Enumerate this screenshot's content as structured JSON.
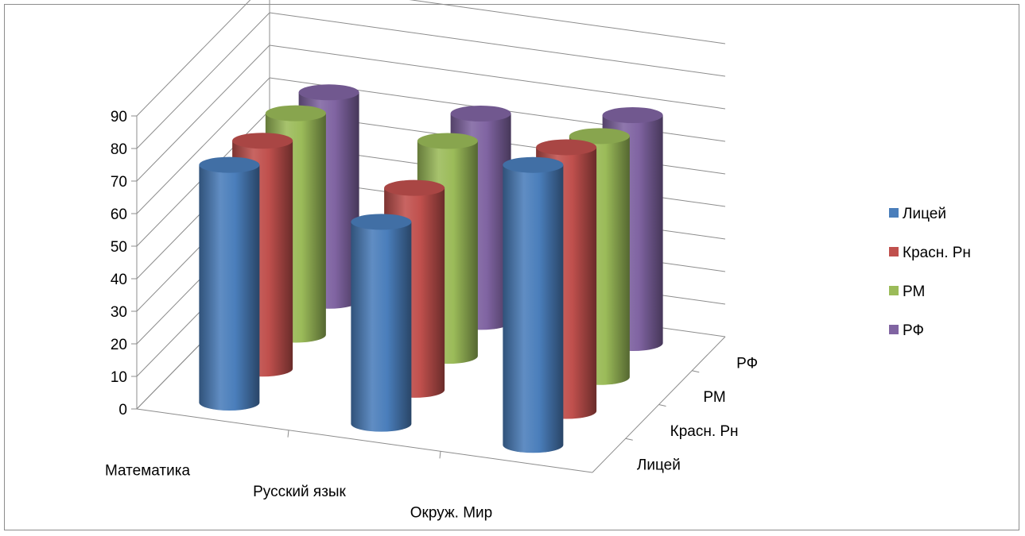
{
  "chart_data": {
    "type": "bar",
    "subtype": "3d-cylinder",
    "title": "",
    "categories": [
      "Математика",
      "Русский язык",
      "Окруж. Мир"
    ],
    "depth_labels": [
      "Лицей",
      "Красн. Рн",
      "РМ",
      "РФ"
    ],
    "series": [
      {
        "name": "Лицей",
        "color": "#4a7ebb",
        "values": [
          73,
          62,
          86
        ]
      },
      {
        "name": "Красн. Рн",
        "color": "#c0504d",
        "values": [
          70,
          62,
          81
        ]
      },
      {
        "name": "РМ",
        "color": "#9bbb59",
        "values": [
          68,
          66,
          74
        ]
      },
      {
        "name": "РФ",
        "color": "#8064a2",
        "values": [
          64,
          64,
          70
        ]
      }
    ],
    "y_ticks": [
      "0",
      "10",
      "20",
      "30",
      "40",
      "50",
      "60",
      "70",
      "80",
      "90"
    ],
    "ylim": [
      0,
      90
    ],
    "grid": true,
    "legend_position": "right"
  }
}
